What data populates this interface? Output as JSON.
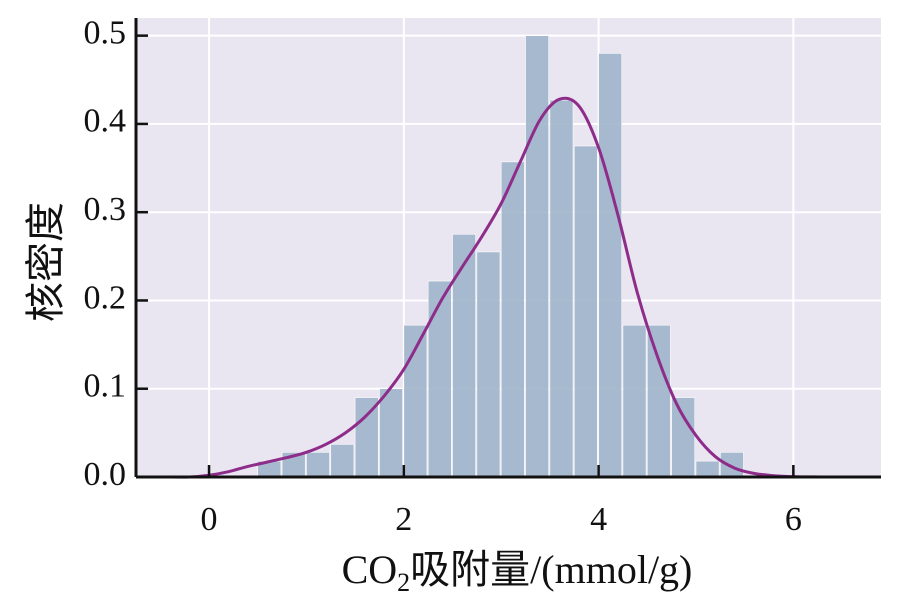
{
  "chart_data": {
    "type": "bar",
    "title": "",
    "xlabel": {
      "prefix": "CO",
      "subscript": "2",
      "suffix": "吸附量/(mmol/g)"
    },
    "ylabel": "核密度",
    "xlim": [
      -0.75,
      6.9
    ],
    "ylim": [
      0,
      0.52
    ],
    "x_ticks": [
      "0",
      "2",
      "4",
      "6"
    ],
    "y_ticks": [
      "0.0",
      "0.1",
      "0.2",
      "0.3",
      "0.4",
      "0.5"
    ],
    "grid": true,
    "histogram": {
      "bins": [
        {
          "x0": 0.5,
          "x1": 0.75,
          "value": 0.018
        },
        {
          "x0": 0.75,
          "x1": 1.0,
          "value": 0.028
        },
        {
          "x0": 1.0,
          "x1": 1.25,
          "value": 0.028
        },
        {
          "x0": 1.25,
          "x1": 1.5,
          "value": 0.037
        },
        {
          "x0": 1.5,
          "x1": 1.75,
          "value": 0.09
        },
        {
          "x0": 1.75,
          "x1": 2.0,
          "value": 0.1
        },
        {
          "x0": 2.0,
          "x1": 2.25,
          "value": 0.172
        },
        {
          "x0": 2.25,
          "x1": 2.5,
          "value": 0.222
        },
        {
          "x0": 2.5,
          "x1": 2.75,
          "value": 0.275
        },
        {
          "x0": 2.75,
          "x1": 3.0,
          "value": 0.255
        },
        {
          "x0": 3.0,
          "x1": 3.25,
          "value": 0.357
        },
        {
          "x0": 3.25,
          "x1": 3.5,
          "value": 0.5
        },
        {
          "x0": 3.5,
          "x1": 3.75,
          "value": 0.427
        },
        {
          "x0": 3.75,
          "x1": 4.0,
          "value": 0.375
        },
        {
          "x0": 4.0,
          "x1": 4.25,
          "value": 0.48
        },
        {
          "x0": 4.25,
          "x1": 4.5,
          "value": 0.172
        },
        {
          "x0": 4.5,
          "x1": 4.75,
          "value": 0.172
        },
        {
          "x0": 4.75,
          "x1": 5.0,
          "value": 0.09
        },
        {
          "x0": 5.0,
          "x1": 5.25,
          "value": 0.018
        },
        {
          "x0": 5.25,
          "x1": 5.5,
          "value": 0.028
        }
      ]
    },
    "kde": {
      "x": [
        -0.45,
        -0.2,
        0.0,
        0.2,
        0.4,
        0.6,
        0.8,
        1.0,
        1.2,
        1.4,
        1.6,
        1.8,
        2.0,
        2.2,
        2.4,
        2.6,
        2.8,
        3.0,
        3.2,
        3.4,
        3.6,
        3.8,
        4.0,
        4.2,
        4.4,
        4.6,
        4.8,
        5.0,
        5.2,
        5.4,
        5.6,
        5.8,
        6.0,
        6.2,
        6.4
      ],
      "y": [
        0.0,
        0.0,
        0.002,
        0.006,
        0.012,
        0.017,
        0.022,
        0.028,
        0.037,
        0.05,
        0.068,
        0.092,
        0.122,
        0.162,
        0.203,
        0.238,
        0.272,
        0.31,
        0.358,
        0.405,
        0.428,
        0.42,
        0.373,
        0.296,
        0.208,
        0.138,
        0.083,
        0.047,
        0.023,
        0.01,
        0.004,
        0.0015,
        0.0004,
        0.0001,
        0.0
      ]
    },
    "colors": {
      "background": "#e9e5f1",
      "grid": "#ffffff",
      "bar": "#a1b5cb",
      "line": "#8e2c8a",
      "axis": "#111111"
    }
  }
}
